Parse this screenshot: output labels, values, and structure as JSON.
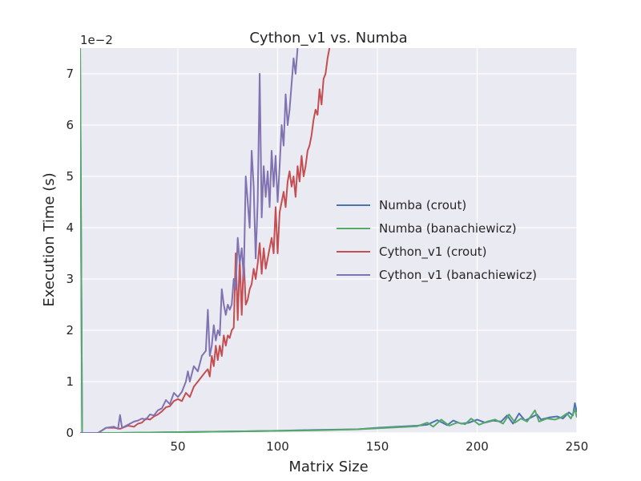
{
  "chart_data": {
    "type": "line",
    "title": "Cython_v1 vs. Numba",
    "xlabel": "Matrix Size",
    "ylabel": "Execution Time (s)",
    "y_scale_label": "1e−2",
    "xlim": [
      1,
      250
    ],
    "ylim": [
      0,
      7.5
    ],
    "x_ticks": [
      50,
      100,
      150,
      200,
      250
    ],
    "y_ticks": [
      0,
      1,
      2,
      3,
      4,
      5,
      6,
      7
    ],
    "grid": true,
    "legend_position": "center-right",
    "series": [
      {
        "name": "Numba (crout)",
        "color": "#4c72b0",
        "points": [
          [
            1,
            7.5
          ],
          [
            2,
            0
          ],
          [
            20,
            0
          ],
          [
            40,
            0.01
          ],
          [
            60,
            0.02
          ],
          [
            80,
            0.03
          ],
          [
            100,
            0.04
          ],
          [
            120,
            0.06
          ],
          [
            140,
            0.07
          ],
          [
            150,
            0.1
          ],
          [
            160,
            0.12
          ],
          [
            170,
            0.14
          ],
          [
            175,
            0.16
          ],
          [
            180,
            0.25
          ],
          [
            185,
            0.15
          ],
          [
            188,
            0.24
          ],
          [
            192,
            0.18
          ],
          [
            196,
            0.2
          ],
          [
            200,
            0.26
          ],
          [
            204,
            0.2
          ],
          [
            208,
            0.24
          ],
          [
            212,
            0.22
          ],
          [
            215,
            0.34
          ],
          [
            218,
            0.18
          ],
          [
            221,
            0.38
          ],
          [
            224,
            0.24
          ],
          [
            227,
            0.3
          ],
          [
            230,
            0.36
          ],
          [
            232,
            0.26
          ],
          [
            236,
            0.3
          ],
          [
            240,
            0.32
          ],
          [
            243,
            0.28
          ],
          [
            246,
            0.4
          ],
          [
            248,
            0.34
          ],
          [
            249,
            0.58
          ],
          [
            250,
            0.4
          ]
        ]
      },
      {
        "name": "Numba (banachiewicz)",
        "color": "#55a868",
        "points": [
          [
            1,
            7.5
          ],
          [
            2,
            0
          ],
          [
            20,
            0
          ],
          [
            40,
            0.01
          ],
          [
            60,
            0.02
          ],
          [
            80,
            0.03
          ],
          [
            100,
            0.04
          ],
          [
            120,
            0.05
          ],
          [
            140,
            0.07
          ],
          [
            150,
            0.09
          ],
          [
            160,
            0.11
          ],
          [
            170,
            0.13
          ],
          [
            175,
            0.2
          ],
          [
            178,
            0.12
          ],
          [
            182,
            0.26
          ],
          [
            186,
            0.14
          ],
          [
            190,
            0.2
          ],
          [
            194,
            0.17
          ],
          [
            197,
            0.28
          ],
          [
            201,
            0.16
          ],
          [
            205,
            0.22
          ],
          [
            209,
            0.26
          ],
          [
            213,
            0.18
          ],
          [
            216,
            0.36
          ],
          [
            219,
            0.2
          ],
          [
            222,
            0.28
          ],
          [
            225,
            0.22
          ],
          [
            229,
            0.44
          ],
          [
            231,
            0.22
          ],
          [
            235,
            0.28
          ],
          [
            239,
            0.26
          ],
          [
            242,
            0.3
          ],
          [
            245,
            0.38
          ],
          [
            247,
            0.28
          ],
          [
            249,
            0.46
          ],
          [
            250,
            0.3
          ]
        ]
      },
      {
        "name": "Cython_v1 (crout)",
        "color": "#c44e52",
        "points": [
          [
            1,
            0
          ],
          [
            10,
            0
          ],
          [
            14,
            0.1
          ],
          [
            18,
            0.1
          ],
          [
            21,
            0.08
          ],
          [
            25,
            0.14
          ],
          [
            28,
            0.12
          ],
          [
            30,
            0.18
          ],
          [
            32,
            0.2
          ],
          [
            34,
            0.28
          ],
          [
            36,
            0.26
          ],
          [
            38,
            0.32
          ],
          [
            40,
            0.36
          ],
          [
            42,
            0.42
          ],
          [
            44,
            0.5
          ],
          [
            46,
            0.52
          ],
          [
            48,
            0.62
          ],
          [
            50,
            0.66
          ],
          [
            52,
            0.62
          ],
          [
            54,
            0.78
          ],
          [
            56,
            0.7
          ],
          [
            58,
            0.9
          ],
          [
            60,
            1.0
          ],
          [
            62,
            1.1
          ],
          [
            64,
            1.2
          ],
          [
            65,
            1.24
          ],
          [
            66,
            1.1
          ],
          [
            67,
            1.5
          ],
          [
            68,
            1.3
          ],
          [
            69,
            1.7
          ],
          [
            70,
            1.42
          ],
          [
            71,
            1.7
          ],
          [
            72,
            1.5
          ],
          [
            73,
            1.9
          ],
          [
            74,
            1.7
          ],
          [
            75,
            1.9
          ],
          [
            76,
            1.85
          ],
          [
            77,
            2.0
          ],
          [
            78,
            2.05
          ],
          [
            79,
            3.5
          ],
          [
            80,
            2.2
          ],
          [
            81,
            3.4
          ],
          [
            82,
            2.3
          ],
          [
            83,
            3.4
          ],
          [
            84,
            2.5
          ],
          [
            85,
            2.6
          ],
          [
            86,
            2.8
          ],
          [
            87,
            2.9
          ],
          [
            88,
            3.2
          ],
          [
            89,
            3.0
          ],
          [
            90,
            3.3
          ],
          [
            91,
            3.7
          ],
          [
            92,
            3.1
          ],
          [
            93,
            3.6
          ],
          [
            94,
            3.2
          ],
          [
            95,
            3.4
          ],
          [
            96,
            3.6
          ],
          [
            97,
            3.8
          ],
          [
            98,
            3.5
          ],
          [
            99,
            4.4
          ],
          [
            100,
            3.5
          ],
          [
            101,
            4.3
          ],
          [
            102,
            4.5
          ],
          [
            103,
            4.7
          ],
          [
            104,
            4.4
          ],
          [
            105,
            4.9
          ],
          [
            106,
            5.1
          ],
          [
            107,
            4.8
          ],
          [
            108,
            5.0
          ],
          [
            109,
            4.6
          ],
          [
            110,
            5.2
          ],
          [
            111,
            4.9
          ],
          [
            112,
            5.4
          ],
          [
            113,
            5.0
          ],
          [
            114,
            5.2
          ],
          [
            115,
            5.5
          ],
          [
            116,
            5.6
          ],
          [
            117,
            5.8
          ],
          [
            118,
            6.1
          ],
          [
            119,
            6.3
          ],
          [
            120,
            6.2
          ],
          [
            121,
            6.7
          ],
          [
            122,
            6.4
          ],
          [
            123,
            6.9
          ],
          [
            124,
            7.0
          ],
          [
            125,
            7.3
          ],
          [
            126,
            7.5
          ]
        ]
      },
      {
        "name": "Cython_v1 (banachiewicz)",
        "color": "#8172b2",
        "points": [
          [
            1,
            0
          ],
          [
            10,
            0
          ],
          [
            14,
            0.1
          ],
          [
            18,
            0.12
          ],
          [
            20,
            0.08
          ],
          [
            21,
            0.35
          ],
          [
            22,
            0.1
          ],
          [
            25,
            0.16
          ],
          [
            28,
            0.22
          ],
          [
            30,
            0.24
          ],
          [
            32,
            0.28
          ],
          [
            34,
            0.26
          ],
          [
            36,
            0.36
          ],
          [
            38,
            0.34
          ],
          [
            40,
            0.44
          ],
          [
            42,
            0.48
          ],
          [
            44,
            0.64
          ],
          [
            46,
            0.56
          ],
          [
            48,
            0.78
          ],
          [
            50,
            0.7
          ],
          [
            52,
            0.8
          ],
          [
            54,
            1.0
          ],
          [
            55,
            1.2
          ],
          [
            56,
            1.0
          ],
          [
            58,
            1.3
          ],
          [
            60,
            1.2
          ],
          [
            62,
            1.5
          ],
          [
            64,
            1.6
          ],
          [
            65,
            2.4
          ],
          [
            66,
            1.5
          ],
          [
            67,
            1.7
          ],
          [
            68,
            2.1
          ],
          [
            69,
            1.8
          ],
          [
            70,
            2.0
          ],
          [
            71,
            1.9
          ],
          [
            72,
            2.8
          ],
          [
            73,
            2.5
          ],
          [
            74,
            2.3
          ],
          [
            75,
            2.5
          ],
          [
            76,
            2.4
          ],
          [
            77,
            2.5
          ],
          [
            78,
            3.0
          ],
          [
            79,
            2.8
          ],
          [
            80,
            3.8
          ],
          [
            81,
            3.3
          ],
          [
            82,
            3.6
          ],
          [
            83,
            3.0
          ],
          [
            84,
            5.0
          ],
          [
            85,
            4.5
          ],
          [
            86,
            4.0
          ],
          [
            87,
            5.5
          ],
          [
            88,
            4.8
          ],
          [
            89,
            3.4
          ],
          [
            90,
            4.5
          ],
          [
            91,
            7.0
          ],
          [
            92,
            4.2
          ],
          [
            93,
            5.2
          ],
          [
            94,
            4.6
          ],
          [
            95,
            5.1
          ],
          [
            96,
            4.4
          ],
          [
            97,
            5.5
          ],
          [
            98,
            4.8
          ],
          [
            99,
            5.4
          ],
          [
            100,
            4.5
          ],
          [
            101,
            5.2
          ],
          [
            102,
            6.0
          ],
          [
            103,
            5.6
          ],
          [
            104,
            6.6
          ],
          [
            105,
            6.0
          ],
          [
            106,
            6.3
          ],
          [
            107,
            6.8
          ],
          [
            108,
            7.3
          ],
          [
            109,
            7.0
          ],
          [
            110,
            7.5
          ]
        ]
      }
    ]
  }
}
